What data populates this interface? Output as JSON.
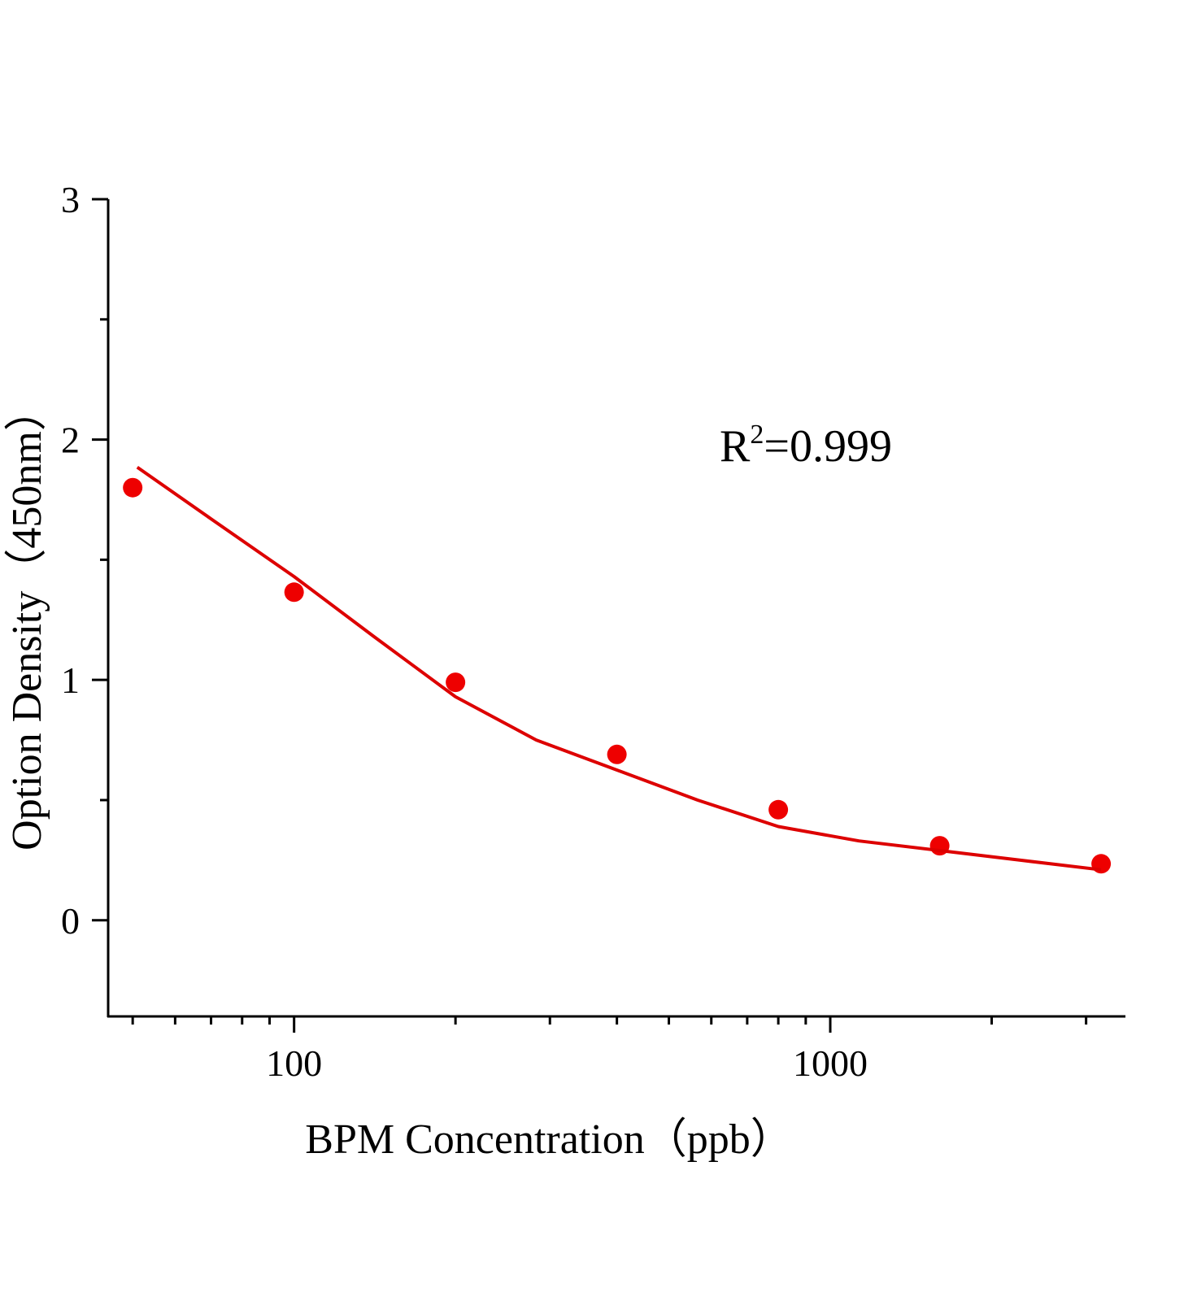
{
  "chart_data": {
    "type": "scatter",
    "x_label": "BPM Concentration（ppb）",
    "y_label": "Option Density（450nm）",
    "annotation": [
      "R",
      "2",
      "=0.999"
    ],
    "xscale": "log",
    "xlim": [
      45,
      3540
    ],
    "xticks": [
      100,
      1000
    ],
    "xminor_ticks": [
      50,
      60,
      70,
      80,
      90,
      200,
      300,
      400,
      500,
      600,
      700,
      800,
      900,
      2000,
      3000
    ],
    "ylim": [
      -0.4,
      3
    ],
    "yticks": [
      0,
      1,
      2,
      3
    ],
    "yminor_ticks": [
      0.5,
      1.5,
      2.5
    ],
    "series": [
      {
        "mode": "markers",
        "color": "#ee0000",
        "x": [
          50,
          100,
          200,
          400,
          800,
          1600,
          3200
        ],
        "values": [
          1.8,
          1.365,
          0.99,
          0.69,
          0.46,
          0.31,
          0.235
        ]
      },
      {
        "mode": "line",
        "color": "#dd0000",
        "x": [
          51,
          70,
          100,
          141,
          200,
          283,
          400,
          566,
          800,
          1131,
          1600,
          2263,
          3200
        ],
        "values": [
          1.885,
          1.67,
          1.43,
          1.18,
          0.93,
          0.75,
          0.625,
          0.5,
          0.39,
          0.33,
          0.29,
          0.25,
          0.21
        ]
      }
    ]
  }
}
